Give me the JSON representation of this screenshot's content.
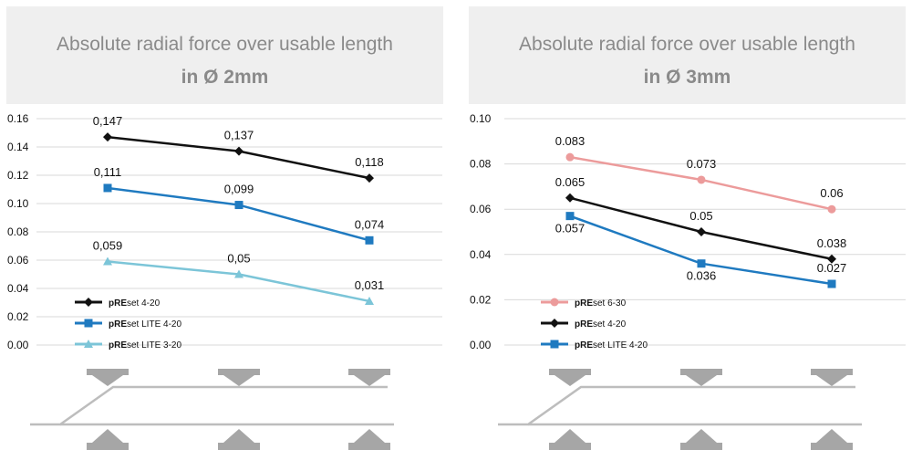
{
  "panels": [
    {
      "title_line1": "Absolute radial force over usable length",
      "title_line2": "in Ø 2mm"
    },
    {
      "title_line1": "Absolute radial force over usable length",
      "title_line2": "in Ø 3mm"
    }
  ],
  "chart_data": [
    {
      "type": "line",
      "title": "Absolute radial force over usable length in Ø 2mm",
      "ylim": [
        0,
        0.16
      ],
      "yticks": [
        "0.00",
        "0.02",
        "0.04",
        "0.06",
        "0.08",
        "0.10",
        "0.12",
        "0.14",
        "0.16"
      ],
      "grid": true,
      "legend_position": "bottom-left",
      "series": [
        {
          "name_bold": "pRE",
          "name_rest": "set 4-20",
          "color": "#111111",
          "marker": "diamond",
          "values": [
            0.147,
            0.137,
            0.118
          ],
          "labels": [
            "0,147",
            "0,137",
            "0,118"
          ]
        },
        {
          "name_bold": "pRE",
          "name_rest": "set LITE 4-20",
          "color": "#1f7ac0",
          "marker": "square",
          "values": [
            0.111,
            0.099,
            0.074
          ],
          "labels": [
            "0,111",
            "0,099",
            "0,074"
          ]
        },
        {
          "name_bold": "pRE",
          "name_rest": "set LITE 3-20",
          "color": "#7cc5d8",
          "marker": "triangle",
          "values": [
            0.059,
            0.05,
            0.031
          ],
          "labels": [
            "0,059",
            "0,05",
            "0,031"
          ]
        }
      ]
    },
    {
      "type": "line",
      "title": "Absolute radial force over usable length in Ø 3mm",
      "ylim": [
        0,
        0.1
      ],
      "yticks": [
        "0.00",
        "0.02",
        "0.04",
        "0.06",
        "0.08",
        "0.10"
      ],
      "grid": true,
      "legend_position": "bottom-left",
      "series": [
        {
          "name_bold": "pRE",
          "name_rest": "set 6-30",
          "color": "#ec9b9b",
          "marker": "circle",
          "values": [
            0.083,
            0.073,
            0.06
          ],
          "labels": [
            "0.083",
            "0.073",
            "0.06"
          ]
        },
        {
          "name_bold": "pRE",
          "name_rest": "set 4-20",
          "color": "#111111",
          "marker": "diamond",
          "values": [
            0.065,
            0.05,
            0.038
          ],
          "labels": [
            "0.065",
            "0.05",
            "0.038"
          ]
        },
        {
          "name_bold": "pRE",
          "name_rest": "set LITE 4-20",
          "color": "#1f7ac0",
          "marker": "square",
          "values": [
            0.057,
            0.036,
            0.027
          ],
          "labels": [
            "0.057",
            "0.036",
            "0.027"
          ]
        }
      ]
    }
  ],
  "colors": {
    "header_bg": "#efefef",
    "title_text": "#8a8a8a",
    "grid": "#d9d9d9",
    "arrow": "#a6a6a6",
    "diagram_line": "#bdbdbd"
  }
}
